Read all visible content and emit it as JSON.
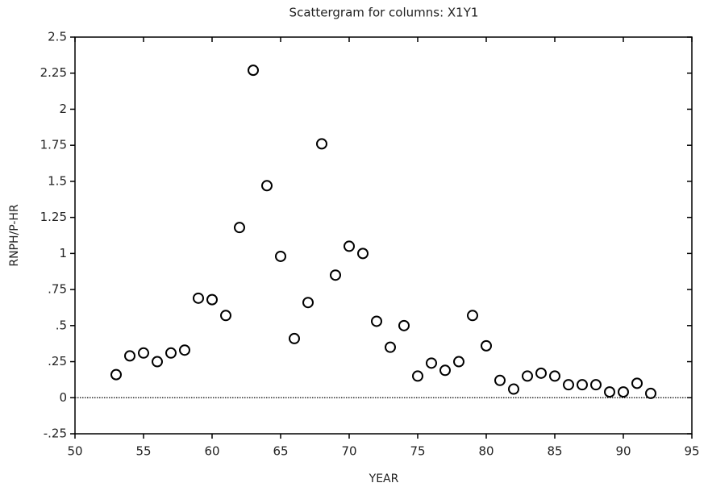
{
  "chart_data": {
    "type": "scatter",
    "title": "Scattergram for columns: X1Y1",
    "x_label": "YEAR",
    "y_label": "RNPH/P-HR",
    "series": [
      {
        "name": "X1Y1",
        "color": "#000000",
        "x": [
          53,
          54,
          55,
          56,
          57,
          58,
          59,
          60,
          61,
          62,
          63,
          64,
          65,
          66,
          67,
          68,
          69,
          70,
          71,
          72,
          73,
          74,
          75,
          76,
          77,
          78,
          79,
          80,
          81,
          82,
          83,
          84,
          85,
          86,
          87,
          88,
          89,
          90,
          91,
          92
        ],
        "values": [
          0.16,
          0.29,
          0.31,
          0.25,
          0.31,
          0.33,
          0.69,
          0.68,
          0.57,
          1.18,
          2.27,
          1.47,
          0.98,
          0.41,
          0.66,
          1.76,
          0.85,
          1.05,
          1.0,
          0.53,
          0.35,
          0.5,
          0.15,
          0.24,
          0.19,
          0.25,
          0.57,
          0.36,
          0.12,
          0.06,
          0.15,
          0.17,
          0.15,
          0.09,
          0.09,
          0.09,
          0.04,
          0.04,
          0.1,
          0.03
        ]
      }
    ],
    "xlim": [
      50,
      95
    ],
    "xticks": [
      50,
      55,
      60,
      65,
      70,
      75,
      80,
      85,
      90,
      95
    ],
    "ylim": [
      -0.25,
      2.5
    ],
    "yticks": [
      {
        "value": -0.25,
        "label": "-.25"
      },
      0,
      {
        "value": 0.25,
        "label": ".25"
      },
      {
        "value": 0.5,
        "label": ".5"
      },
      {
        "value": 0.75,
        "label": ".75"
      },
      1,
      1.25,
      1.5,
      1.75,
      2,
      2.25,
      2.5
    ],
    "zero_line": true,
    "grid": false
  }
}
